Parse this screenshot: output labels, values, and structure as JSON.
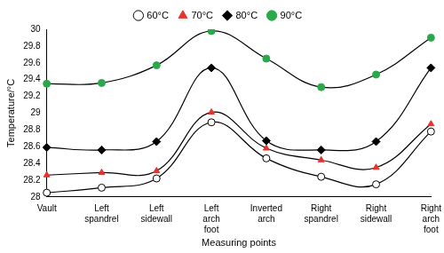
{
  "chart_data": {
    "type": "line",
    "x_label": "Measuring points",
    "y_label": "Temperature/°C",
    "categories": [
      "Vault",
      "Left spandrel",
      "Left sidewall",
      "Left arch foot",
      "Inverted arch",
      "Right spandrel",
      "Right sidewall",
      "Right arch foot"
    ],
    "series": [
      {
        "name": "60°C",
        "color": "#ffffff",
        "marker": "circle",
        "line_style": "solid",
        "values": [
          28.05,
          28.11,
          28.22,
          28.89,
          28.46,
          28.24,
          28.15,
          28.78
        ]
      },
      {
        "name": "70°C",
        "color": "#e8322d",
        "marker": "triangle",
        "line_style": "solid",
        "values": [
          28.26,
          28.29,
          28.31,
          29.01,
          28.58,
          28.44,
          28.35,
          28.87
        ]
      },
      {
        "name": "80°C",
        "color": "#000000",
        "marker": "diamond",
        "line_style": "solid",
        "values": [
          28.59,
          28.56,
          28.66,
          29.54,
          28.67,
          28.56,
          28.66,
          29.54
        ]
      },
      {
        "name": "90°C",
        "color": "#2aa84a",
        "marker": "circle",
        "line_style": "solid",
        "values": [
          29.35,
          29.36,
          29.57,
          29.98,
          29.65,
          29.31,
          29.46,
          29.9
        ]
      }
    ],
    "ylim": [
      28,
      30
    ],
    "yticks": [
      28,
      28.2,
      28.4,
      28.6,
      28.8,
      29,
      29.2,
      29.4,
      29.6,
      29.8,
      30
    ],
    "grid": false,
    "legend": "top"
  }
}
